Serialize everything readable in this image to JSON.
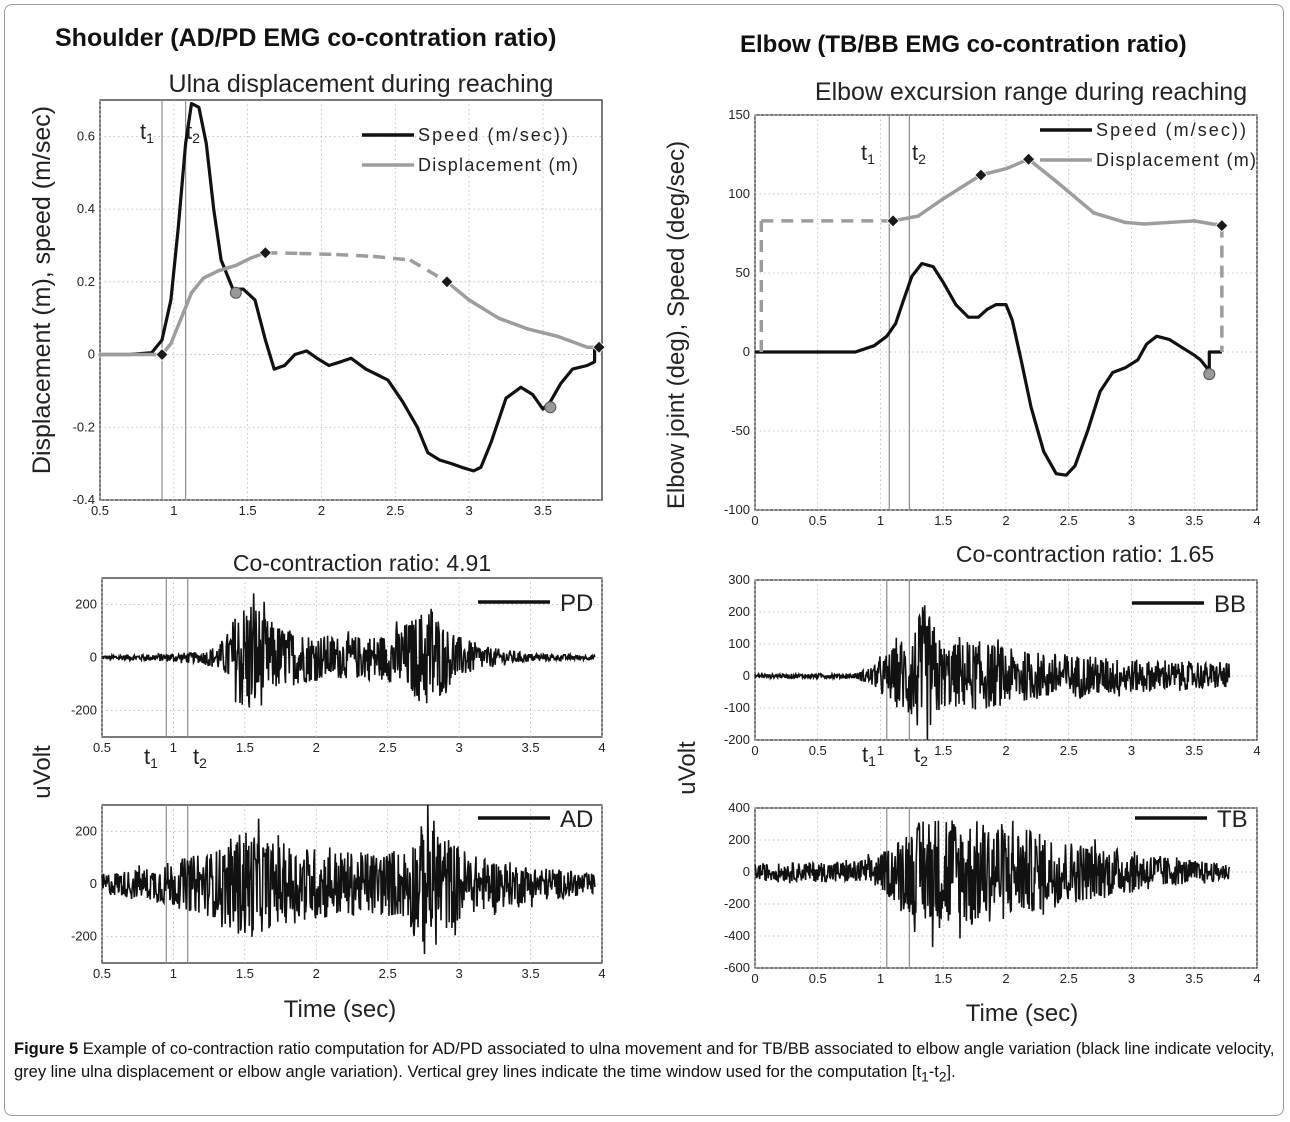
{
  "figure": {
    "left_heading": "Shoulder (AD/PD EMG co-contration ratio)",
    "right_heading": "Elbow (TB/BB EMG co-contration ratio)",
    "left_ylabel_top": "Displacement (m), speed (m/sec)",
    "right_ylabel_top": "Elbow joint (deg), Speed (deg/sec)",
    "emg_ylabel": "uVolt",
    "xlabel": "Time (sec)",
    "t1": "t",
    "t1_sub": "1",
    "t2": "t",
    "t2_sub": "2"
  },
  "caption": {
    "label": "Figure 5",
    "text_main": " Example of co-contraction ratio computation for AD/PD associated to ulna movement and for TB/BB associated to elbow angle variation (black line indicate velocity, grey line ulna displacement or elbow angle variation). Vertical grey lines indicate the time window used for the computation [t",
    "sub1": "1",
    "mid": "-t",
    "sub2": "2",
    "end": "]."
  },
  "colors": {
    "speed": "#111111",
    "displacement": "#9d9d9d",
    "marker": "#1a1a1a",
    "circle": "#999999",
    "grid": "#b5b5b5",
    "window_line": "#8c8c8c"
  },
  "chart_data": [
    {
      "id": "ulna",
      "type": "line",
      "title": "Ulna displacement during reaching",
      "ylim": [
        -0.4,
        0.7
      ],
      "xlim": [
        0.5,
        3.9
      ],
      "xticks": [
        0.5,
        1,
        1.5,
        2,
        2.5,
        3,
        3.5
      ],
      "xtick_labels": [
        "0.5",
        "1",
        "1.5",
        "2",
        "2.5",
        "3",
        "3.5"
      ],
      "yticks": [
        -0.4,
        -0.2,
        0,
        0.2,
        0.4,
        0.6
      ],
      "ytick_labels": [
        "-0.4",
        "-0.2",
        "0",
        "0.2",
        "0.4",
        "0.6"
      ],
      "window": [
        0.92,
        1.08
      ],
      "legend": {
        "position": "top-right",
        "entries": [
          "Speed (m/sec))",
          "Displacement (m)"
        ]
      },
      "series": [
        {
          "name": "Speed (m/sec))",
          "style": "solid-black",
          "x": [
            0.5,
            0.7,
            0.85,
            0.92,
            0.98,
            1.03,
            1.08,
            1.12,
            1.17,
            1.22,
            1.27,
            1.32,
            1.4,
            1.47,
            1.55,
            1.62,
            1.68,
            1.75,
            1.82,
            1.9,
            1.97,
            2.05,
            2.13,
            2.2,
            2.3,
            2.45,
            2.55,
            2.65,
            2.72,
            2.8,
            2.88,
            2.95,
            3.03,
            3.08,
            3.15,
            3.25,
            3.35,
            3.43,
            3.5,
            3.55,
            3.62,
            3.7,
            3.8,
            3.85,
            3.85,
            3.88
          ],
          "y": [
            0,
            0,
            0.005,
            0.04,
            0.15,
            0.35,
            0.58,
            0.69,
            0.68,
            0.58,
            0.4,
            0.26,
            0.18,
            0.18,
            0.15,
            0.04,
            -0.04,
            -0.03,
            0.0,
            0.01,
            -0.01,
            -0.03,
            -0.02,
            -0.01,
            -0.04,
            -0.07,
            -0.13,
            -0.2,
            -0.27,
            -0.29,
            -0.3,
            -0.31,
            -0.32,
            -0.31,
            -0.24,
            -0.12,
            -0.09,
            -0.11,
            -0.15,
            -0.13,
            -0.08,
            -0.04,
            -0.03,
            -0.02,
            0.02,
            0.02
          ]
        },
        {
          "name": "Displacement (m)",
          "style": "grey",
          "x": [
            0.5,
            0.92,
            0.98,
            1.05,
            1.12,
            1.2,
            1.3,
            1.42,
            1.52,
            1.62,
            1.85,
            2.1,
            2.35,
            2.6,
            2.85,
            3.0,
            3.2,
            3.4,
            3.6,
            3.8,
            3.88
          ],
          "y": [
            0,
            0,
            0.03,
            0.1,
            0.17,
            0.21,
            0.23,
            0.245,
            0.265,
            0.28,
            0.278,
            0.275,
            0.27,
            0.26,
            0.2,
            0.15,
            0.1,
            0.07,
            0.05,
            0.02,
            0.02
          ],
          "dashed_range": [
            1.62,
            2.85
          ]
        }
      ],
      "diamonds": [
        [
          0.92,
          0.0
        ],
        [
          1.62,
          0.28
        ],
        [
          2.85,
          0.2
        ],
        [
          3.88,
          0.02
        ]
      ],
      "circles": [
        [
          1.42,
          0.17
        ],
        [
          3.55,
          -0.145
        ]
      ]
    },
    {
      "id": "elbow",
      "type": "line",
      "title": "Elbow excursion range during reaching",
      "ylim": [
        -100,
        150
      ],
      "xlim": [
        0,
        4
      ],
      "xticks": [
        0,
        0.5,
        1,
        1.5,
        2,
        2.5,
        3,
        3.5,
        4
      ],
      "xtick_labels": [
        "0",
        "0.5",
        "1",
        "1.5",
        "2",
        "2.5",
        "3",
        "3.5",
        "4"
      ],
      "yticks": [
        -100,
        -50,
        0,
        50,
        100,
        150
      ],
      "ytick_labels": [
        "-100",
        "-50",
        "0",
        "50",
        "100",
        "150"
      ],
      "window": [
        1.07,
        1.23
      ],
      "legend": {
        "position": "top-right",
        "entries": [
          "Speed (m/sec))",
          "Displacement (m)"
        ]
      },
      "series": [
        {
          "name": "Speed (m/sec))",
          "style": "solid-black",
          "x": [
            0,
            0.5,
            0.8,
            0.95,
            1.05,
            1.12,
            1.18,
            1.25,
            1.33,
            1.42,
            1.5,
            1.6,
            1.7,
            1.78,
            1.85,
            1.92,
            2.0,
            2.05,
            2.12,
            2.2,
            2.3,
            2.4,
            2.48,
            2.55,
            2.65,
            2.75,
            2.85,
            2.95,
            3.05,
            3.12,
            3.2,
            3.3,
            3.4,
            3.5,
            3.55,
            3.6,
            3.62,
            3.62,
            3.72
          ],
          "y": [
            0,
            0,
            0,
            4,
            10,
            18,
            32,
            48,
            56,
            54,
            44,
            30,
            22,
            22,
            27,
            30,
            30,
            20,
            -5,
            -35,
            -63,
            -77,
            -78,
            -72,
            -50,
            -25,
            -13,
            -10,
            -5,
            5,
            10,
            8,
            3,
            -2,
            -5,
            -10,
            -14,
            0,
            0
          ]
        },
        {
          "name": "Displacement (m)",
          "style": "grey",
          "x": [
            0.05,
            0.05,
            1.1,
            1.3,
            1.5,
            1.8,
            2.0,
            2.18,
            2.4,
            2.7,
            2.95,
            3.1,
            3.3,
            3.5,
            3.72,
            3.72
          ],
          "y": [
            0,
            83,
            83,
            86,
            97,
            112,
            116,
            122,
            108,
            88,
            82,
            81,
            82,
            83,
            80,
            0
          ],
          "dashed_ranges": [
            [
              0,
              2
            ],
            [
              14,
              15
            ]
          ]
        }
      ],
      "diamonds": [
        [
          1.1,
          83
        ],
        [
          1.8,
          112
        ],
        [
          2.18,
          122
        ],
        [
          3.72,
          80
        ]
      ],
      "circles": [
        [
          3.62,
          -14
        ]
      ]
    },
    {
      "id": "pd",
      "type": "line",
      "title": "Co-contraction ratio: 4.91",
      "legend_label": "PD",
      "xlim": [
        0.5,
        4
      ],
      "ylim": [
        -300,
        300
      ],
      "xticks": [
        0.5,
        1,
        1.5,
        2,
        2.5,
        3,
        3.5,
        4
      ],
      "xtick_labels": [
        "0.5",
        "1",
        "1.5",
        "2",
        "2.5",
        "3",
        "3.5",
        "4"
      ],
      "yticks": [
        -200,
        0,
        200
      ],
      "ytick_labels": [
        "-200",
        "0",
        "200"
      ],
      "window": [
        0.95,
        1.1
      ],
      "series": [
        {
          "name": "PD",
          "x_range": [
            0.5,
            3.95
          ],
          "envelope_x": [
            0.5,
            0.9,
            1.2,
            1.35,
            1.45,
            1.55,
            1.65,
            1.8,
            2.0,
            2.2,
            2.5,
            2.7,
            2.8,
            2.9,
            3.0,
            3.2,
            3.5,
            3.95
          ],
          "envelope_y": [
            8,
            14,
            22,
            60,
            190,
            250,
            150,
            110,
            90,
            80,
            90,
            160,
            220,
            120,
            80,
            40,
            15,
            8
          ]
        }
      ]
    },
    {
      "id": "bb",
      "type": "line",
      "title": "Co-contraction ratio: 1.65",
      "legend_label": "BB",
      "xlim": [
        0,
        4
      ],
      "ylim": [
        -200,
        300
      ],
      "xticks": [
        0,
        0.5,
        1,
        1.5,
        2,
        2.5,
        3,
        3.5,
        4
      ],
      "xtick_labels": [
        "0",
        "0.5",
        "1",
        "1.5",
        "2",
        "2.5",
        "3",
        "3.5",
        "4"
      ],
      "yticks": [
        -200,
        -100,
        0,
        100,
        200,
        300
      ],
      "ytick_labels": [
        "-200",
        "-100",
        "0",
        "100",
        "200",
        "300"
      ],
      "window": [
        1.05,
        1.23
      ],
      "series": [
        {
          "name": "BB",
          "x_range": [
            0,
            3.78
          ],
          "envelope_x": [
            0,
            0.8,
            0.95,
            1.1,
            1.25,
            1.35,
            1.5,
            1.8,
            2.1,
            2.5,
            2.9,
            3.3,
            3.78
          ],
          "envelope_y": [
            6,
            8,
            35,
            90,
            140,
            230,
            100,
            110,
            80,
            70,
            55,
            45,
            40
          ]
        }
      ]
    },
    {
      "id": "ad",
      "type": "line",
      "legend_label": "AD",
      "xlim": [
        0.5,
        4
      ],
      "ylim": [
        -300,
        300
      ],
      "xticks": [
        0.5,
        1,
        1.5,
        2,
        2.5,
        3,
        3.5,
        4
      ],
      "xtick_labels": [
        "0.5",
        "1",
        "1.5",
        "2",
        "2.5",
        "3",
        "3.5",
        "4"
      ],
      "yticks": [
        -200,
        0,
        200
      ],
      "ytick_labels": [
        "-200",
        "0",
        "200"
      ],
      "window": [
        0.95,
        1.1
      ],
      "series": [
        {
          "name": "AD",
          "x_range": [
            0.5,
            3.95
          ],
          "envelope_x": [
            0.5,
            0.8,
            1.0,
            1.3,
            1.5,
            1.7,
            2.0,
            2.3,
            2.6,
            2.8,
            2.9,
            3.1,
            3.5,
            3.95
          ],
          "envelope_y": [
            40,
            60,
            90,
            130,
            220,
            160,
            140,
            120,
            130,
            270,
            190,
            110,
            70,
            40
          ]
        }
      ]
    },
    {
      "id": "tb",
      "type": "line",
      "legend_label": "TB",
      "xlim": [
        0,
        4
      ],
      "ylim": [
        -600,
        400
      ],
      "xticks": [
        0,
        0.5,
        1,
        1.5,
        2,
        2.5,
        3,
        3.5,
        4
      ],
      "xtick_labels": [
        "0",
        "0.5",
        "1",
        "1.5",
        "2",
        "2.5",
        "3",
        "3.5",
        "4"
      ],
      "yticks": [
        -600,
        -400,
        -200,
        0,
        200,
        400
      ],
      "ytick_labels": [
        "-600",
        "-400",
        "-200",
        "0",
        "200",
        "400"
      ],
      "window": [
        1.05,
        1.23
      ],
      "series": [
        {
          "name": "TB",
          "x_range": [
            0,
            3.78
          ],
          "envelope_x": [
            0,
            0.8,
            1.0,
            1.2,
            1.4,
            1.7,
            2.0,
            2.2,
            2.5,
            2.8,
            3.1,
            3.4,
            3.78
          ],
          "envelope_y": [
            50,
            70,
            110,
            250,
            370,
            330,
            310,
            260,
            200,
            160,
            120,
            80,
            50
          ]
        }
      ]
    }
  ]
}
